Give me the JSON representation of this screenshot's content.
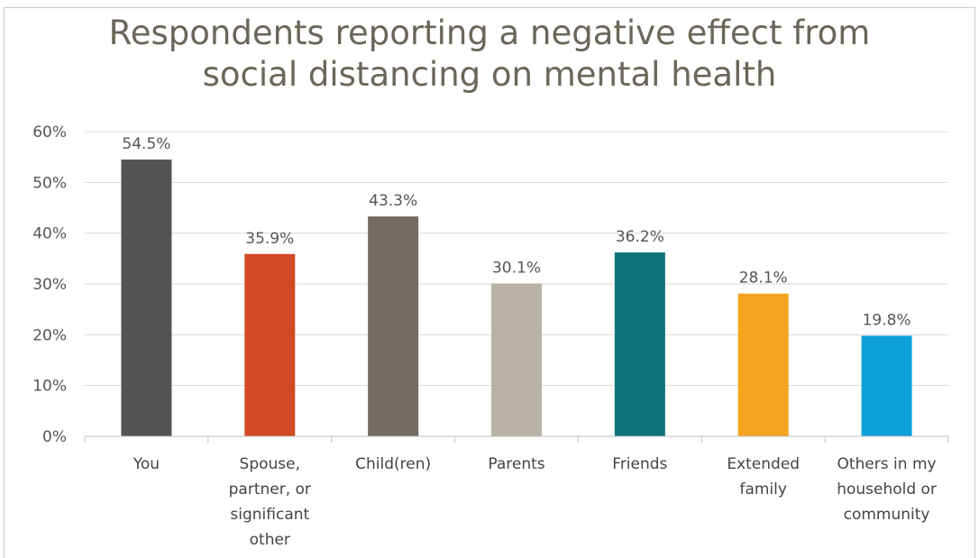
{
  "chart_data": {
    "type": "bar",
    "title": "Respondents reporting a negative effect from\nsocial distancing on mental health",
    "categories": [
      [
        "You"
      ],
      [
        "Spouse,",
        "partner, or",
        "significant",
        "other"
      ],
      [
        "Child(ren)"
      ],
      [
        "Parents"
      ],
      [
        "Friends"
      ],
      [
        "Extended",
        "family"
      ],
      [
        "Others in my",
        "household or",
        "community"
      ]
    ],
    "values": [
      54.5,
      35.9,
      43.3,
      30.1,
      36.2,
      28.1,
      19.8
    ],
    "data_labels": [
      "54.5%",
      "35.9%",
      "43.3%",
      "30.1%",
      "36.2%",
      "28.1%",
      "19.8%"
    ],
    "bar_colors": [
      "#545454",
      "#d04a26",
      "#756b62",
      "#b8b3a4",
      "#0f727c",
      "#f3a31f",
      "#0ea0d9"
    ],
    "ylim": [
      0,
      60
    ],
    "yticks": [
      "0%",
      "10%",
      "20%",
      "30%",
      "40%",
      "50%",
      "60%"
    ],
    "grid": true,
    "legend": "none"
  }
}
